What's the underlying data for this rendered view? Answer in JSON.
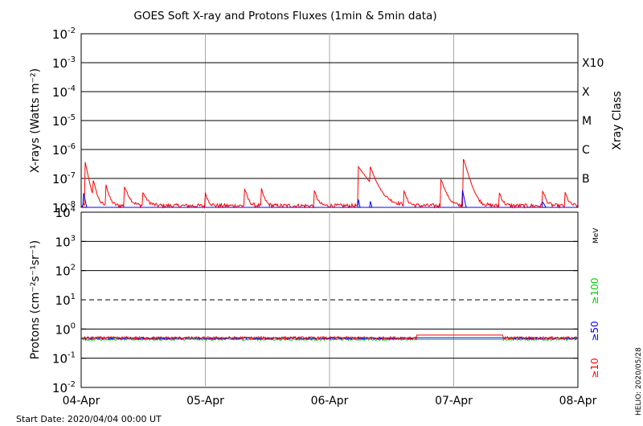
{
  "chart_data": [
    {
      "type": "line",
      "title": "GOES Soft X-ray and Protons Fluxes   (1min & 5min data)",
      "ylabel": "X-rays (Watts m⁻²)",
      "right_label": "Xray Class",
      "yscale": "log",
      "ylim": [
        1e-08,
        0.01
      ],
      "y_ticks": [
        {
          "value": 0.01,
          "base": "10",
          "exp": "-2"
        },
        {
          "value": 0.001,
          "base": "10",
          "exp": "-3"
        },
        {
          "value": 0.0001,
          "base": "10",
          "exp": "-4"
        },
        {
          "value": 1e-05,
          "base": "10",
          "exp": "-5"
        },
        {
          "value": 1e-06,
          "base": "10",
          "exp": "-6"
        },
        {
          "value": 1e-07,
          "base": "10",
          "exp": "-7"
        },
        {
          "value": 1e-08,
          "base": "10",
          "exp": "-8"
        }
      ],
      "class_labels": [
        {
          "label": "X10",
          "value": 0.001
        },
        {
          "label": "X",
          "value": 0.0001
        },
        {
          "label": "M",
          "value": 1e-05
        },
        {
          "label": "C",
          "value": 1e-06
        },
        {
          "label": "B",
          "value": 1e-07
        }
      ],
      "xlim_days": [
        0,
        4
      ],
      "grid": true,
      "series": [
        {
          "color": "#ff0000",
          "baseline": 1.1e-08,
          "noise": 0.35,
          "events": [
            {
              "t": 0.03,
              "peak": 4e-07,
              "decay": 0.02
            },
            {
              "t": 0.1,
              "peak": 6e-08,
              "decay": 0.02
            },
            {
              "t": 0.2,
              "peak": 5e-08,
              "decay": 0.02
            },
            {
              "t": 0.35,
              "peak": 4e-08,
              "decay": 0.03
            },
            {
              "t": 0.5,
              "peak": 2e-08,
              "decay": 0.03
            },
            {
              "t": 1.0,
              "peak": 2e-08,
              "decay": 0.02
            },
            {
              "t": 1.32,
              "peak": 3e-08,
              "decay": 0.02
            },
            {
              "t": 1.45,
              "peak": 3.5e-08,
              "decay": 0.02
            },
            {
              "t": 1.88,
              "peak": 2.5e-08,
              "decay": 0.02
            },
            {
              "t": 2.23,
              "peak": 2.5e-07,
              "decay": 0.07
            },
            {
              "t": 2.33,
              "peak": 1.8e-07,
              "decay": 0.03
            },
            {
              "t": 2.6,
              "peak": 2.5e-08,
              "decay": 0.02
            },
            {
              "t": 2.9,
              "peak": 8e-08,
              "decay": 0.03
            },
            {
              "t": 3.08,
              "peak": 4.5e-07,
              "decay": 0.03
            },
            {
              "t": 3.37,
              "peak": 2e-08,
              "decay": 0.02
            },
            {
              "t": 3.72,
              "peak": 2.5e-08,
              "decay": 0.02
            },
            {
              "t": 3.9,
              "peak": 2e-08,
              "decay": 0.02
            }
          ]
        },
        {
          "color": "#0000ff",
          "baseline": 1e-09,
          "noise": 0.3,
          "events": [
            {
              "t": 0.02,
              "peak": 3e-08,
              "decay": 0.02
            },
            {
              "t": 2.23,
              "peak": 2e-08,
              "decay": 0.02
            },
            {
              "t": 2.33,
              "peak": 1.5e-08,
              "decay": 0.02
            },
            {
              "t": 3.07,
              "peak": 4e-08,
              "decay": 0.02
            },
            {
              "t": 3.72,
              "peak": 1.4e-08,
              "decay": 0.05
            }
          ]
        }
      ]
    },
    {
      "type": "line",
      "ylabel": "Protons (cm⁻²s⁻¹sr⁻¹)",
      "yscale": "log",
      "ylim": [
        0.01,
        10000
      ],
      "y_ticks": [
        {
          "value": 10000,
          "base": "10",
          "exp": "4"
        },
        {
          "value": 1000,
          "base": "10",
          "exp": "3"
        },
        {
          "value": 100,
          "base": "10",
          "exp": "2"
        },
        {
          "value": 10,
          "base": "10",
          "exp": "1"
        },
        {
          "value": 1,
          "base": "10",
          "exp": "0"
        },
        {
          "value": 0.1,
          "base": "10",
          "exp": "-1"
        },
        {
          "value": 0.01,
          "base": "10",
          "exp": "-2"
        }
      ],
      "threshold": {
        "value": 10,
        "style": "dashed"
      },
      "energy_unit": "MeV",
      "legend": [
        {
          "label": "≥10",
          "color": "#ff0000"
        },
        {
          "label": "≥50",
          "color": "#0000ff"
        },
        {
          "label": "≥100",
          "color": "#00cc00"
        }
      ],
      "xlim_days": [
        0,
        4
      ],
      "grid": true,
      "series": [
        {
          "color": "#00cc00",
          "level": 0.44,
          "noise": 0.07,
          "gap": [
            2.7,
            3.4
          ],
          "gap_level": 0.44
        },
        {
          "color": "#0000ff",
          "level": 0.48,
          "noise": 0.07,
          "gap": [
            2.7,
            3.4
          ],
          "gap_level": 0.5
        },
        {
          "color": "#ff0000",
          "level": 0.5,
          "noise": 0.09,
          "gap": [
            2.7,
            3.4
          ],
          "gap_level": 0.62
        }
      ]
    }
  ],
  "x_axis": {
    "ticks": [
      "04-Apr",
      "05-Apr",
      "06-Apr",
      "07-Apr",
      "08-Apr"
    ]
  },
  "footer": {
    "start_date": "Start Date: 2020/04/04 00:00 UT",
    "credit": "HELIO: 2020/05/28"
  }
}
